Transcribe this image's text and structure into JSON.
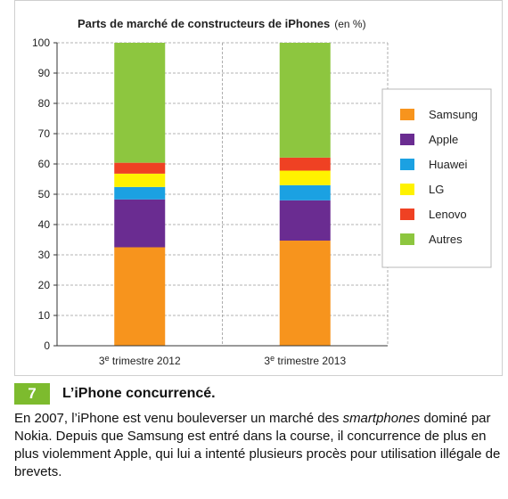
{
  "chart_data": {
    "type": "bar",
    "stacked": true,
    "title": "Parts de marché de constructeurs de iPhones",
    "title_unit": "(en %)",
    "categories": [
      "3e trimestre 2012",
      "3e trimestre 2013"
    ],
    "ylim": [
      0,
      100
    ],
    "yticks": [
      0,
      10,
      20,
      30,
      40,
      50,
      60,
      70,
      80,
      90,
      100
    ],
    "grid": true,
    "legend_position": "right",
    "series": [
      {
        "name": "Samsung",
        "color": "#f7941d",
        "values": [
          32.5,
          34.7
        ]
      },
      {
        "name": "Apple",
        "color": "#6a2c91",
        "values": [
          15.8,
          13.3
        ]
      },
      {
        "name": "Huawei",
        "color": "#1ba1e2",
        "values": [
          4.1,
          5.0
        ]
      },
      {
        "name": "LG",
        "color": "#fff200",
        "values": [
          4.4,
          4.8
        ]
      },
      {
        "name": "Lenovo",
        "color": "#ef4123",
        "values": [
          3.6,
          4.3
        ]
      },
      {
        "name": "Autres",
        "color": "#8dc63f",
        "values": [
          39.6,
          37.9
        ]
      }
    ]
  },
  "caption": {
    "number": "7",
    "title": "L’iPhone concurrencé.",
    "text_before": "En 2007, l’iPhone est venu bouleverser un marché des ",
    "text_emphasis": "smartphones",
    "text_after": " dominé par Nokia. Depuis que Samsung est entré dans la course, il concurrence de plus en plus violemment Apple, qui lui a intenté plusieurs procès pour utilisation illégale de brevets."
  }
}
